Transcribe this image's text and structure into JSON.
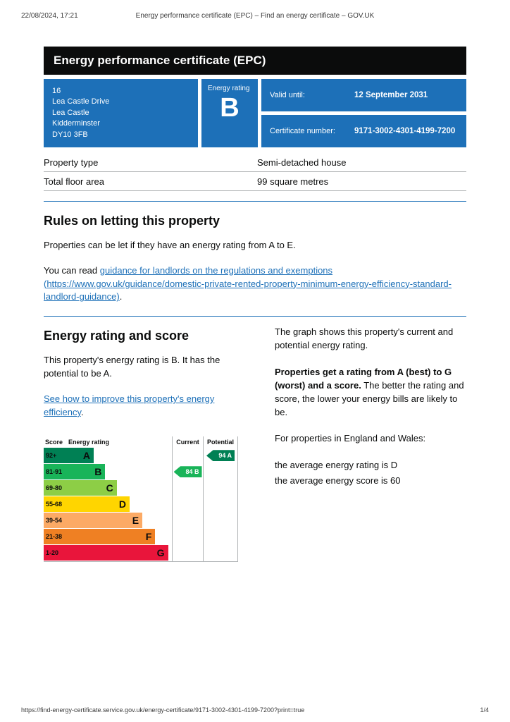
{
  "print_header": {
    "datetime": "22/08/2024, 17:21",
    "title": "Energy performance certificate (EPC) – Find an energy certificate – GOV.UK"
  },
  "banner": {
    "title": "Energy performance certificate (EPC)"
  },
  "summary": {
    "address_lines": [
      "16",
      "Lea Castle Drive",
      "Lea Castle",
      "Kidderminster",
      "DY10 3FB"
    ],
    "energy_rating_label": "Energy rating",
    "energy_rating": "B",
    "valid_until_label": "Valid until:",
    "valid_until": "12 September 2031",
    "certificate_number_label": "Certificate number:",
    "certificate_number": "9171-3002-4301-4199-7200"
  },
  "property_table": {
    "rows": [
      {
        "label": "Property type",
        "value": "Semi-detached house"
      },
      {
        "label": "Total floor area",
        "value": "99 square metres"
      }
    ]
  },
  "rules_section": {
    "heading": "Rules on letting this property",
    "paragraph": "Properties can be let if they have an energy rating from A to E.",
    "link_intro": "You can read ",
    "link_text": "guidance for landlords on the regulations and exemptions (https://www.gov.uk/guidance/domestic-private-rented-property-minimum-energy-efficiency-standard-landlord-guidance)",
    "link_suffix": "."
  },
  "rating_section": {
    "heading": "Energy rating and score",
    "paragraph": "This property's energy rating is B. It has the potential to be A.",
    "improve_link": "See how to improve this property's energy efficiency",
    "improve_suffix": "."
  },
  "side_text": {
    "p1": "The graph shows this property's current and potential energy rating.",
    "p2_bold": "Properties get a rating from A (best) to G (worst) and a score.",
    "p2_rest": " The better the rating and score, the lower your energy bills are likely to be.",
    "p3": "For properties in England and Wales:",
    "p4": "the average energy rating is D",
    "p5": "the average energy score is 60"
  },
  "chart_data": {
    "type": "bar",
    "title": "Energy rating and score graph",
    "headers": [
      "Score",
      "Energy rating",
      "Current",
      "Potential"
    ],
    "bands": [
      {
        "score": "92+",
        "letter": "A",
        "color": "#008054",
        "width_pct": 39
      },
      {
        "score": "81-91",
        "letter": "B",
        "color": "#19b459",
        "width_pct": 48
      },
      {
        "score": "69-80",
        "letter": "C",
        "color": "#8dce46",
        "width_pct": 57
      },
      {
        "score": "55-68",
        "letter": "D",
        "color": "#ffd500",
        "width_pct": 67
      },
      {
        "score": "39-54",
        "letter": "E",
        "color": "#fcaa65",
        "width_pct": 77
      },
      {
        "score": "21-38",
        "letter": "F",
        "color": "#ef8023",
        "width_pct": 87
      },
      {
        "score": "1-20",
        "letter": "G",
        "color": "#e9153b",
        "width_pct": 97
      }
    ],
    "current": {
      "score": 84,
      "letter": "B",
      "band_index": 1,
      "color": "#19b459"
    },
    "potential": {
      "score": 94,
      "letter": "A",
      "band_index": 0,
      "color": "#008054"
    }
  },
  "print_footer": {
    "url": "https://find-energy-certificate.service.gov.uk/energy-certificate/9171-3002-4301-4199-7200?print=true",
    "page": "1/4"
  },
  "colors": {
    "govuk_blue": "#1d70b8",
    "banner_black": "#0b0c0c",
    "link_blue": "#1d70b8",
    "border_grey": "#b1b4b6"
  }
}
